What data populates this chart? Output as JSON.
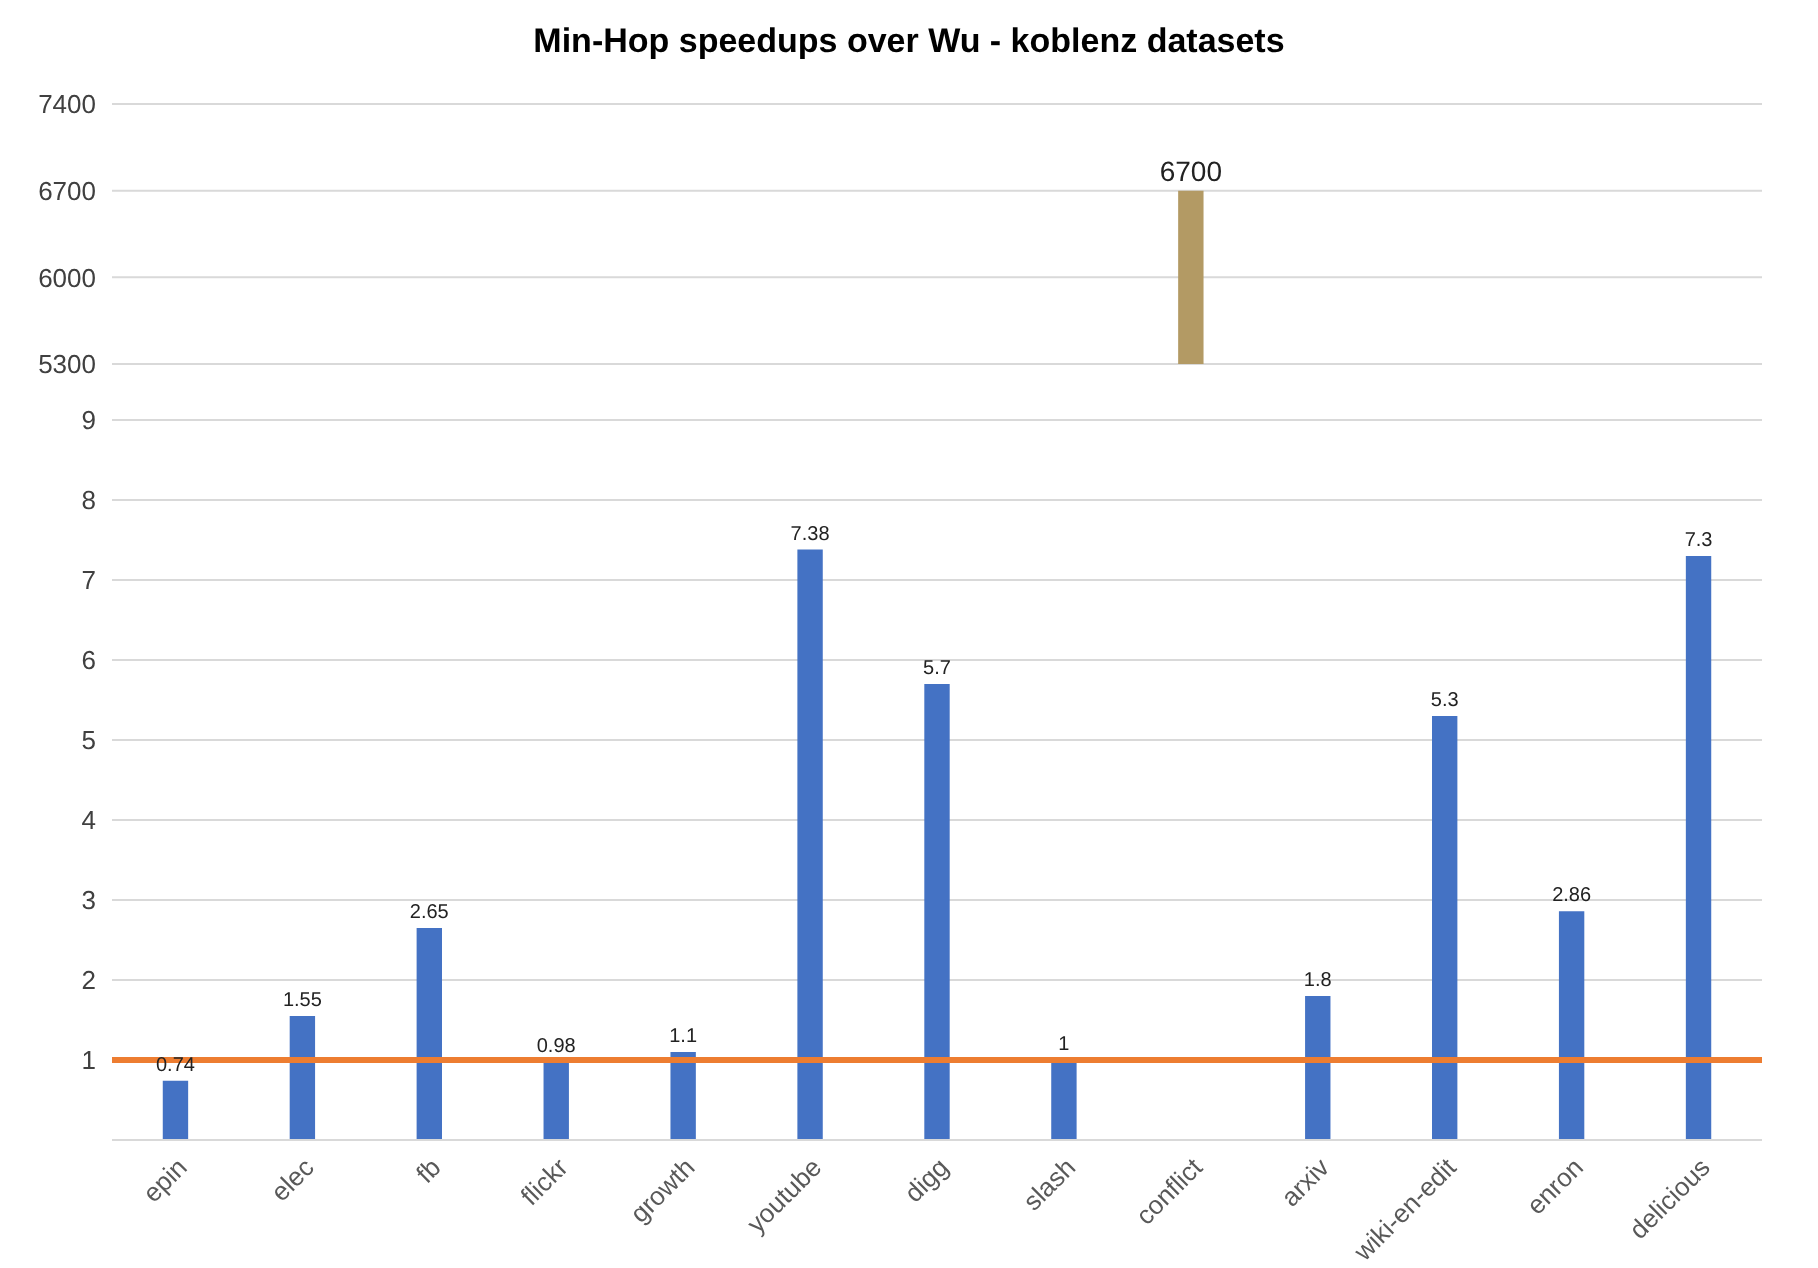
{
  "chart_data": [
    {
      "type": "bar",
      "title": "Min-Hop speedups over Wu - koblenz datasets",
      "values": [
        null,
        null,
        null,
        null,
        null,
        null,
        null,
        null,
        6700,
        null,
        null,
        null,
        null
      ],
      "colors": [
        "#4472c4",
        "#4472c4",
        "#4472c4",
        "#4472c4",
        "#4472c4",
        "#4472c4",
        "#4472c4",
        "#4472c4",
        "#b39a64",
        "#4472c4",
        "#4472c4",
        "#4472c4",
        "#4472c4"
      ],
      "ylim": [
        5300,
        7400
      ],
      "yticks": [
        5300,
        6000,
        6700,
        7400
      ],
      "tick_labels": "y",
      "data_labels": true,
      "grid": "y"
    },
    {
      "type": "bar",
      "categories": [
        "epin",
        "elec",
        "fb",
        "flickr",
        "growth",
        "youtube",
        "digg",
        "slash",
        "conflict",
        "arxiv",
        "wiki-en-edit",
        "enron",
        "delicious"
      ],
      "values": [
        0.74,
        1.55,
        2.65,
        0.98,
        1.1,
        7.38,
        5.7,
        1,
        null,
        1.8,
        5.3,
        2.86,
        7.3
      ],
      "colors": [
        "#4472c4",
        "#4472c4",
        "#4472c4",
        "#4472c4",
        "#4472c4",
        "#4472c4",
        "#4472c4",
        "#4472c4",
        "#b39a64",
        "#4472c4",
        "#4472c4",
        "#4472c4",
        "#4472c4"
      ],
      "ylim": [
        0,
        9
      ],
      "yticks": [
        1,
        2,
        3,
        4,
        5,
        6,
        7,
        8,
        9
      ],
      "data_labels": true,
      "grid": "y",
      "ref_lines": [
        {
          "axis": "y",
          "value": 1,
          "color": "#ed7d31"
        }
      ]
    }
  ]
}
